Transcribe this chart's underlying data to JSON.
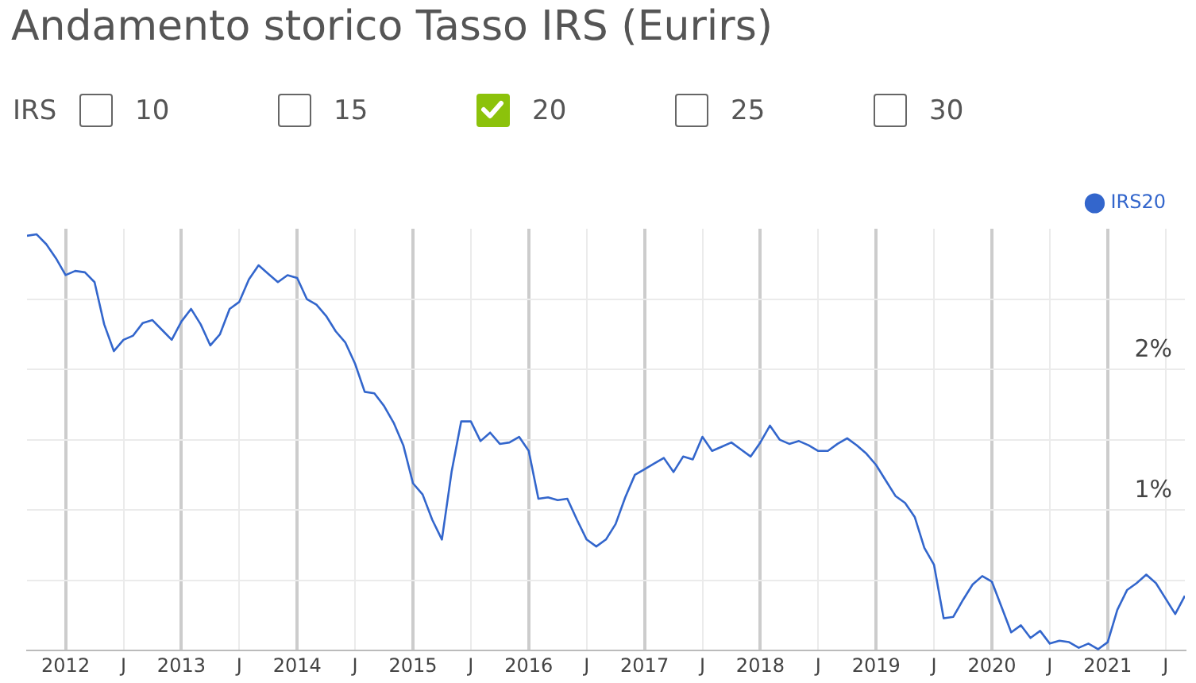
{
  "chart_data": {
    "type": "line",
    "title": "Andamento storico Tasso IRS (Eurirs)",
    "annotations": [
      "IRS",
      "10",
      "15",
      "20",
      "25",
      "30"
    ],
    "x": [
      "2011-09",
      "2011-10",
      "2011-11",
      "2011-12",
      "2012-01",
      "2012-02",
      "2012-03",
      "2012-04",
      "2012-05",
      "2012-06",
      "2012-07",
      "2012-08",
      "2012-09",
      "2012-10",
      "2012-11",
      "2012-12",
      "2013-01",
      "2013-02",
      "2013-03",
      "2013-04",
      "2013-05",
      "2013-06",
      "2013-07",
      "2013-08",
      "2013-09",
      "2013-10",
      "2013-11",
      "2013-12",
      "2014-01",
      "2014-02",
      "2014-03",
      "2014-04",
      "2014-05",
      "2014-06",
      "2014-07",
      "2014-08",
      "2014-09",
      "2014-10",
      "2014-11",
      "2014-12",
      "2015-01",
      "2015-02",
      "2015-03",
      "2015-04",
      "2015-05",
      "2015-06",
      "2015-07",
      "2015-08",
      "2015-09",
      "2015-10",
      "2015-11",
      "2015-12",
      "2016-01",
      "2016-02",
      "2016-03",
      "2016-04",
      "2016-05",
      "2016-06",
      "2016-07",
      "2016-08",
      "2016-09",
      "2016-10",
      "2016-11",
      "2016-12",
      "2017-01",
      "2017-02",
      "2017-03",
      "2017-04",
      "2017-05",
      "2017-06",
      "2017-07",
      "2017-08",
      "2017-09",
      "2017-10",
      "2017-11",
      "2017-12",
      "2018-01",
      "2018-02",
      "2018-03",
      "2018-04",
      "2018-05",
      "2018-06",
      "2018-07",
      "2018-08",
      "2018-09",
      "2018-10",
      "2018-11",
      "2018-12",
      "2019-01",
      "2019-02",
      "2019-03",
      "2019-04",
      "2019-05",
      "2019-06",
      "2019-07",
      "2019-08",
      "2019-09",
      "2019-10",
      "2019-11",
      "2019-12",
      "2020-01",
      "2020-02",
      "2020-03",
      "2020-04",
      "2020-05",
      "2020-06",
      "2020-07",
      "2020-08",
      "2020-09",
      "2020-10",
      "2020-11",
      "2020-12",
      "2021-01",
      "2021-02",
      "2021-03",
      "2021-04",
      "2021-05",
      "2021-06",
      "2021-07",
      "2021-08",
      "2021-09"
    ],
    "series": [
      {
        "name": "IRS20",
        "color": "#3366cc",
        "values": [
          2.95,
          2.96,
          2.89,
          2.79,
          2.67,
          2.7,
          2.69,
          2.62,
          2.32,
          2.13,
          2.21,
          2.24,
          2.33,
          2.35,
          2.28,
          2.21,
          2.34,
          2.43,
          2.32,
          2.17,
          2.25,
          2.43,
          2.48,
          2.64,
          2.74,
          2.68,
          2.62,
          2.67,
          2.65,
          2.5,
          2.46,
          2.38,
          2.27,
          2.19,
          2.04,
          1.84,
          1.83,
          1.74,
          1.62,
          1.46,
          1.19,
          1.11,
          0.93,
          0.79,
          1.27,
          1.63,
          1.63,
          1.49,
          1.55,
          1.47,
          1.48,
          1.52,
          1.42,
          1.08,
          1.09,
          1.07,
          1.08,
          0.93,
          0.79,
          0.74,
          0.79,
          0.9,
          1.09,
          1.25,
          1.29,
          1.33,
          1.37,
          1.27,
          1.38,
          1.36,
          1.52,
          1.42,
          1.45,
          1.48,
          1.43,
          1.38,
          1.48,
          1.6,
          1.5,
          1.47,
          1.49,
          1.46,
          1.42,
          1.42,
          1.47,
          1.51,
          1.46,
          1.4,
          1.32,
          1.21,
          1.1,
          1.05,
          0.95,
          0.73,
          0.61,
          0.23,
          0.24,
          0.36,
          0.47,
          0.53,
          0.49,
          0.31,
          0.13,
          0.18,
          0.09,
          0.14,
          0.05,
          0.07,
          0.06,
          0.02,
          0.05,
          0.01,
          0.06,
          0.29,
          0.43,
          0.48,
          0.54,
          0.48,
          0.37,
          0.26,
          0.39
        ]
      }
    ],
    "xlim": [
      "2011-09",
      "2021-09"
    ],
    "xticks": [
      {
        "value": "2012-01",
        "label": "2012"
      },
      {
        "value": "2012-07",
        "label": "J"
      },
      {
        "value": "2013-01",
        "label": "2013"
      },
      {
        "value": "2013-07",
        "label": "J"
      },
      {
        "value": "2014-01",
        "label": "2014"
      },
      {
        "value": "2014-07",
        "label": "J"
      },
      {
        "value": "2015-01",
        "label": "2015"
      },
      {
        "value": "2015-07",
        "label": "J"
      },
      {
        "value": "2016-01",
        "label": "2016"
      },
      {
        "value": "2016-07",
        "label": "J"
      },
      {
        "value": "2017-01",
        "label": "2017"
      },
      {
        "value": "2017-07",
        "label": "J"
      },
      {
        "value": "2018-01",
        "label": "2018"
      },
      {
        "value": "2018-07",
        "label": "J"
      },
      {
        "value": "2019-01",
        "label": "2019"
      },
      {
        "value": "2019-07",
        "label": "J"
      },
      {
        "value": "2020-01",
        "label": "2020"
      },
      {
        "value": "2020-07",
        "label": "J"
      },
      {
        "value": "2021-01",
        "label": "2021"
      },
      {
        "value": "2021-07",
        "label": "J"
      }
    ],
    "ylim": [
      0,
      3
    ],
    "yticks": [
      {
        "value": 0.5,
        "label": null
      },
      {
        "value": 1,
        "label": "1%"
      },
      {
        "value": 1.5,
        "label": null
      },
      {
        "value": 2,
        "label": "2%"
      },
      {
        "value": 2.5,
        "label": null
      }
    ],
    "grid": true,
    "legend": "top right",
    "marker": "none",
    "line_style": "solid"
  }
}
